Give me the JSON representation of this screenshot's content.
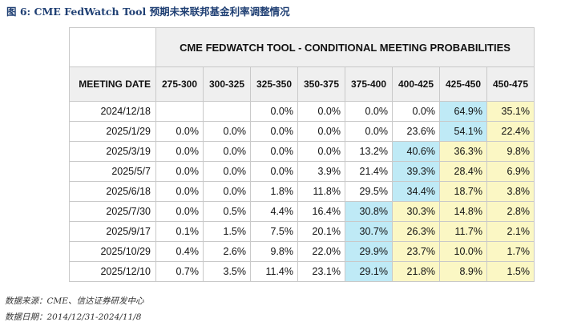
{
  "figure_title": "图 6:  CME FedWatch Tool 预期未来联邦基金利率调整情况",
  "table_title": "CME FEDWATCH TOOL - CONDITIONAL MEETING PROBABILITIES",
  "columns": [
    "MEETING DATE",
    "275-300",
    "300-325",
    "325-350",
    "350-375",
    "375-400",
    "400-425",
    "425-450",
    "450-475"
  ],
  "rows": [
    {
      "date": "2024/12/18",
      "values": [
        "",
        "",
        "0.0%",
        "0.0%",
        "0.0%",
        "0.0%",
        "64.9%",
        "35.1%"
      ]
    },
    {
      "date": "2025/1/29",
      "values": [
        "0.0%",
        "0.0%",
        "0.0%",
        "0.0%",
        "0.0%",
        "23.6%",
        "54.1%",
        "22.4%"
      ]
    },
    {
      "date": "2025/3/19",
      "values": [
        "0.0%",
        "0.0%",
        "0.0%",
        "0.0%",
        "13.2%",
        "40.6%",
        "36.3%",
        "9.8%"
      ]
    },
    {
      "date": "2025/5/7",
      "values": [
        "0.0%",
        "0.0%",
        "0.0%",
        "3.9%",
        "21.4%",
        "39.3%",
        "28.4%",
        "6.9%"
      ]
    },
    {
      "date": "2025/6/18",
      "values": [
        "0.0%",
        "0.0%",
        "1.8%",
        "11.8%",
        "29.5%",
        "34.4%",
        "18.7%",
        "3.8%"
      ]
    },
    {
      "date": "2025/7/30",
      "values": [
        "0.0%",
        "0.5%",
        "4.4%",
        "16.4%",
        "30.8%",
        "30.3%",
        "14.8%",
        "2.8%"
      ]
    },
    {
      "date": "2025/9/17",
      "values": [
        "0.1%",
        "1.5%",
        "7.5%",
        "20.1%",
        "30.7%",
        "26.3%",
        "11.7%",
        "2.1%"
      ]
    },
    {
      "date": "2025/10/29",
      "values": [
        "0.4%",
        "2.6%",
        "9.8%",
        "22.0%",
        "29.9%",
        "23.7%",
        "10.0%",
        "1.7%"
      ]
    },
    {
      "date": "2025/12/10",
      "values": [
        "0.7%",
        "3.5%",
        "11.4%",
        "23.1%",
        "29.1%",
        "21.8%",
        "8.9%",
        "1.5%"
      ]
    }
  ],
  "cell_highlight": [
    [
      "w",
      "w",
      "w",
      "w",
      "w",
      "w",
      "c",
      "y"
    ],
    [
      "w",
      "w",
      "w",
      "w",
      "w",
      "w",
      "c",
      "y"
    ],
    [
      "w",
      "w",
      "w",
      "w",
      "w",
      "c",
      "y",
      "y"
    ],
    [
      "w",
      "w",
      "w",
      "w",
      "w",
      "c",
      "y",
      "y"
    ],
    [
      "w",
      "w",
      "w",
      "w",
      "w",
      "c",
      "y",
      "y"
    ],
    [
      "w",
      "w",
      "w",
      "w",
      "c",
      "y",
      "y",
      "y"
    ],
    [
      "w",
      "w",
      "w",
      "w",
      "c",
      "y",
      "y",
      "y"
    ],
    [
      "w",
      "w",
      "w",
      "w",
      "c",
      "y",
      "y",
      "y"
    ],
    [
      "w",
      "w",
      "w",
      "w",
      "c",
      "y",
      "y",
      "y"
    ]
  ],
  "colors": {
    "highlight_cyan": "#bfeaf6",
    "highlight_yellow": "#fbf7c4",
    "title_blue": "#1f3f73"
  },
  "source": "数据来源：CME、信达证券研发中心",
  "date_range": "数据日期：2014/12/31-2024/11/8"
}
